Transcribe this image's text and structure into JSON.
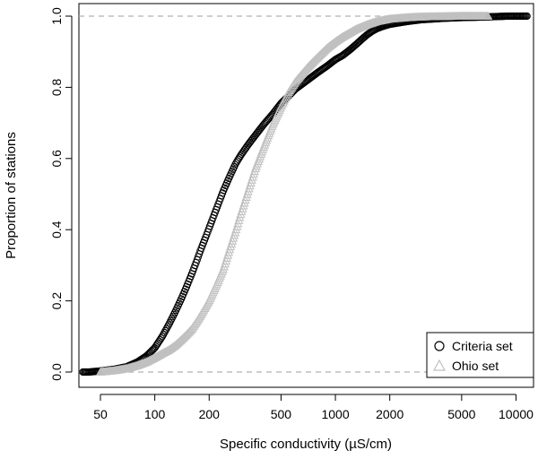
{
  "chart_data": {
    "type": "scatter",
    "title": "",
    "xlabel": "Specific conductivity (µS/cm)",
    "ylabel": "Proportion of stations",
    "x_scale": "log",
    "xlim": [
      38,
      12500
    ],
    "ylim": [
      0,
      1
    ],
    "x_ticks": [
      50,
      100,
      200,
      500,
      1000,
      2000,
      5000,
      10000
    ],
    "x_tick_labels": [
      "50",
      "100",
      "200",
      "500",
      "1000",
      "2000",
      "5000",
      "10000"
    ],
    "y_ticks": [
      0,
      0.2,
      0.4,
      0.6,
      0.8,
      1.0
    ],
    "y_tick_labels": [
      "0.0",
      "0.2",
      "0.4",
      "0.6",
      "0.8",
      "1.0"
    ],
    "reference_lines": [
      0,
      1
    ],
    "grid": false,
    "legend": {
      "position": "bottom-right"
    },
    "series": [
      {
        "name": "Criteria set",
        "marker": "circle",
        "color": "#000000",
        "x": [
          40,
          43,
          50,
          60,
          70,
          80,
          90,
          100,
          110,
          120,
          130,
          140,
          150,
          160,
          170,
          180,
          190,
          200,
          220,
          240,
          260,
          280,
          300,
          330,
          360,
          400,
          450,
          500,
          550,
          600,
          700,
          800,
          900,
          1000,
          1100,
          1200,
          1300,
          1400,
          1500,
          1600,
          1700,
          1800,
          2000,
          2500,
          3000,
          4000,
          5000,
          6000,
          7000,
          8000,
          9000,
          10000,
          11000,
          11500
        ],
        "y": [
          0.0,
          0.0,
          0.003,
          0.008,
          0.015,
          0.028,
          0.045,
          0.068,
          0.1,
          0.135,
          0.17,
          0.205,
          0.24,
          0.275,
          0.31,
          0.345,
          0.375,
          0.405,
          0.46,
          0.51,
          0.55,
          0.585,
          0.61,
          0.64,
          0.665,
          0.695,
          0.725,
          0.755,
          0.775,
          0.795,
          0.82,
          0.842,
          0.86,
          0.878,
          0.89,
          0.905,
          0.92,
          0.935,
          0.948,
          0.958,
          0.965,
          0.97,
          0.977,
          0.985,
          0.99,
          0.994,
          0.996,
          0.997,
          0.998,
          0.999,
          1.0,
          1.0,
          1.0,
          1.0
        ]
      },
      {
        "name": "Ohio set",
        "marker": "triangle",
        "color": "#c0c0c0",
        "x": [
          50,
          60,
          70,
          80,
          90,
          100,
          110,
          120,
          130,
          140,
          150,
          160,
          170,
          180,
          200,
          220,
          240,
          260,
          280,
          300,
          330,
          360,
          400,
          450,
          500,
          550,
          600,
          700,
          800,
          900,
          1000,
          1100,
          1200,
          1300,
          1500,
          1700,
          2000,
          2500,
          3000,
          4000,
          5000,
          6000,
          7000
        ],
        "y": [
          0.0,
          0.004,
          0.01,
          0.018,
          0.028,
          0.04,
          0.052,
          0.062,
          0.075,
          0.09,
          0.105,
          0.12,
          0.14,
          0.16,
          0.2,
          0.245,
          0.29,
          0.345,
          0.395,
          0.445,
          0.51,
          0.57,
          0.63,
          0.695,
          0.745,
          0.785,
          0.815,
          0.855,
          0.885,
          0.91,
          0.928,
          0.942,
          0.953,
          0.963,
          0.976,
          0.985,
          0.992,
          0.996,
          0.998,
          0.999,
          1.0,
          1.0,
          1.0
        ]
      }
    ]
  }
}
